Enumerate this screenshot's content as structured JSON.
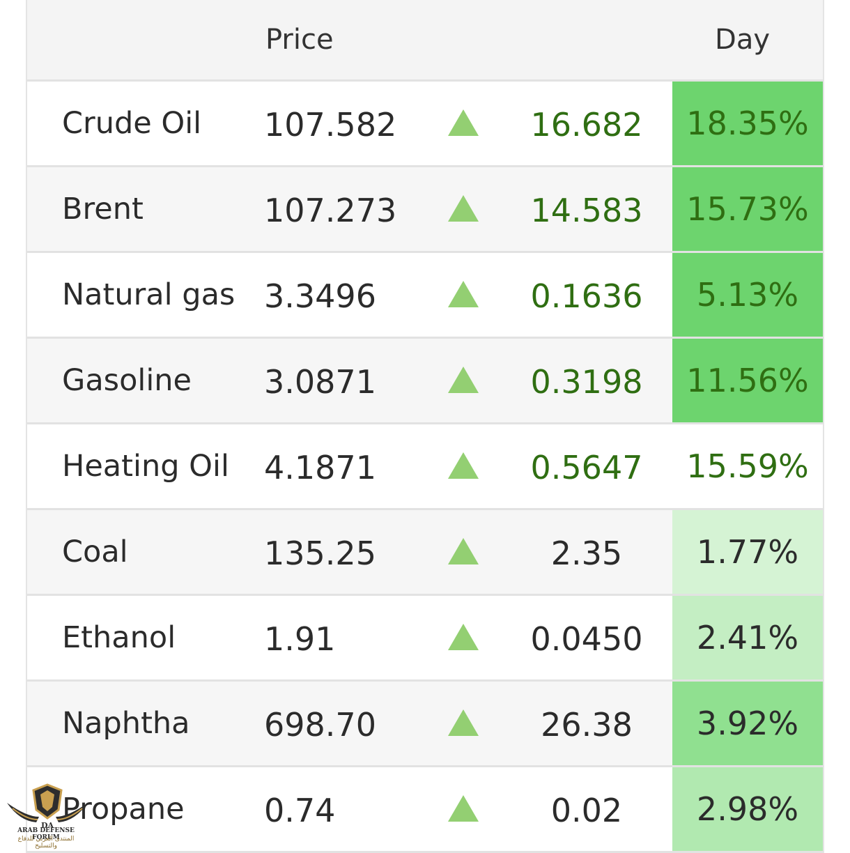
{
  "header": {
    "price_label": "Price",
    "day_label": "Day"
  },
  "rows": [
    {
      "name": "Crude Oil",
      "price": "107.582",
      "change": "16.682",
      "pct": "18.35%",
      "pct_bg": "#6dd46e",
      "change_color": "green"
    },
    {
      "name": "Brent",
      "price": "107.273",
      "change": "14.583",
      "pct": "15.73%",
      "pct_bg": "#6dd46e",
      "change_color": "green"
    },
    {
      "name": "Natural gas",
      "price": "3.3496",
      "change": "0.1636",
      "pct": "5.13%",
      "pct_bg": "#6dd46e",
      "change_color": "green"
    },
    {
      "name": "Gasoline",
      "price": "3.0871",
      "change": "0.3198",
      "pct": "11.56%",
      "pct_bg": "#6dd46e",
      "change_color": "green"
    },
    {
      "name": "Heating Oil",
      "price": "4.1871",
      "change": "0.5647",
      "pct": "15.59%",
      "pct_bg": "#ffffff",
      "change_color": "green"
    },
    {
      "name": "Coal",
      "price": "135.25",
      "change": "2.35",
      "pct": "1.77%",
      "pct_bg": "#d5f3d4",
      "change_color": "dark"
    },
    {
      "name": "Ethanol",
      "price": "1.91",
      "change": "0.0450",
      "pct": "2.41%",
      "pct_bg": "#c4eec3",
      "change_color": "dark"
    },
    {
      "name": "Naphtha",
      "price": "698.70",
      "change": "26.38",
      "pct": "3.92%",
      "pct_bg": "#90e090",
      "change_color": "dark"
    },
    {
      "name": "Propane",
      "price": "0.74",
      "change": "0.02",
      "pct": "2.98%",
      "pct_bg": "#b1e9b0",
      "change_color": "dark"
    }
  ],
  "arrow_icon": "triangle-up-icon",
  "arrow_color": "#93cf72",
  "watermark": {
    "title": "ARAB DEFENSE FORUM",
    "subtitle": "المنتدى العربي للدفاع والتسليح"
  }
}
